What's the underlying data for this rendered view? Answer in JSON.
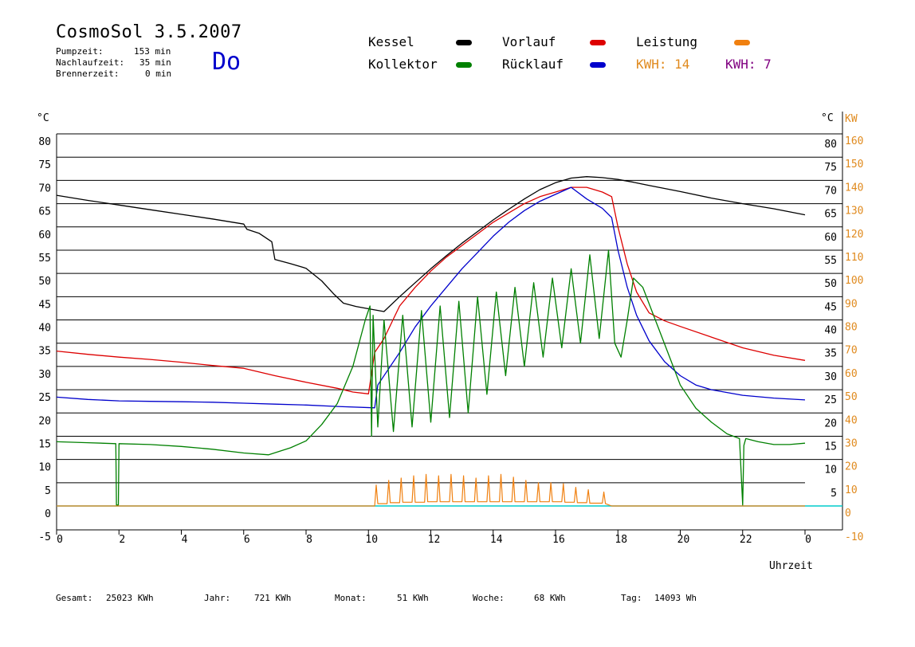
{
  "header": {
    "title": "CosmoSol 3.5.2007",
    "day": "Do",
    "stats": [
      {
        "label": "Pumpzeit:",
        "value": "153 min"
      },
      {
        "label": "Nachlaufzeit:",
        "value": "35 min"
      },
      {
        "label": "Brennerzeit:",
        "value": "0 min"
      }
    ]
  },
  "legend": {
    "kessel": "Kessel",
    "kollektor": "Kollektor",
    "vorlauf": "Vorlauf",
    "ruecklauf": "Rücklauf",
    "leistung": "Leistung",
    "kwh1": "KWH: 14",
    "kwh2": "KWH: 7"
  },
  "colors": {
    "kessel": "#000000",
    "kollektor": "#008000",
    "vorlauf": "#dd0000",
    "ruecklauf": "#0000cc",
    "leistung": "#f08010",
    "kwh2": "#800080",
    "zero": "#00cccc",
    "kw_axis": "#e08a1e"
  },
  "footer": {
    "gesamt_label": "Gesamt:",
    "gesamt_value": "25023 KWh",
    "jahr_label": "Jahr:",
    "jahr_value": "721 KWh",
    "monat_label": "Monat:",
    "monat_value": "51 KWh",
    "woche_label": "Woche:",
    "woche_value": "68 KWh",
    "tag_label": "Tag:",
    "tag_value": "14093 Wh"
  },
  "chart_data": {
    "type": "line",
    "xlabel": "Uhrzeit",
    "ylabel_left": "°C",
    "ylabel_right_temp": "°C",
    "ylabel_right_power": "KW",
    "xlim": [
      0,
      24
    ],
    "ylim": [
      -5,
      80
    ],
    "y2lim": [
      -10,
      160
    ],
    "x_ticks": [
      "0",
      "2",
      "4",
      "6",
      "8",
      "10",
      "12",
      "14",
      "16",
      "18",
      "20",
      "22",
      "0"
    ],
    "y_ticks_left": [
      "80",
      "75",
      "70",
      "65",
      "60",
      "55",
      "50",
      "45",
      "40",
      "35",
      "30",
      "25",
      "20",
      "15",
      "10",
      "5",
      "0",
      "-5"
    ],
    "y_ticks_right_temp": [
      "80",
      "75",
      "70",
      "65",
      "60",
      "55",
      "50",
      "45",
      "40",
      "35",
      "30",
      "25",
      "20",
      "15",
      "10",
      "5"
    ],
    "y_ticks_right_power": [
      "160",
      "150",
      "140",
      "130",
      "120",
      "110",
      "100",
      "90",
      "80",
      "70",
      "60",
      "50",
      "40",
      "30",
      "20",
      "10",
      "0",
      "-10"
    ],
    "grid": true,
    "series": [
      {
        "name": "Kessel",
        "key": "kessel",
        "x": [
          0,
          1,
          2,
          3,
          4,
          5,
          6,
          6.1,
          6.5,
          6.9,
          7.0,
          7.5,
          8.0,
          8.5,
          8.9,
          9.2,
          9.6,
          10.0,
          10.5,
          11.0,
          11.5,
          12.0,
          12.5,
          13.0,
          13.5,
          14.0,
          14.5,
          15.0,
          15.5,
          16.0,
          16.5,
          17.0,
          17.5,
          18.0,
          18.5,
          19.0,
          20.0,
          21.0,
          22.0,
          23.0,
          24.0
        ],
        "y": [
          66.8,
          65.7,
          64.7,
          63.7,
          62.7,
          61.7,
          60.6,
          59.5,
          58.6,
          56.8,
          53.0,
          52.1,
          51.1,
          48.4,
          45.5,
          43.6,
          42.9,
          42.4,
          41.8,
          45.0,
          48.0,
          51.0,
          53.8,
          56.5,
          59.0,
          61.5,
          63.8,
          66.0,
          68.0,
          69.5,
          70.5,
          70.8,
          70.6,
          70.2,
          69.6,
          68.9,
          67.6,
          66.2,
          65.0,
          63.9,
          62.6
        ]
      },
      {
        "name": "Vorlauf",
        "key": "vorlauf",
        "x": [
          0,
          1,
          2,
          3,
          4,
          5,
          6,
          7,
          8,
          9,
          9.5,
          10.0,
          10.2,
          10.5,
          11.0,
          11.5,
          12.0,
          12.5,
          13.0,
          13.5,
          14.0,
          14.5,
          15.0,
          15.5,
          16.0,
          16.5,
          17.0,
          17.5,
          17.8,
          18.0,
          18.3,
          18.6,
          19.0,
          19.5,
          20.0,
          21.0,
          22.0,
          23.0,
          24.0
        ],
        "y": [
          33.3,
          32.6,
          32.0,
          31.5,
          30.9,
          30.2,
          29.6,
          28.0,
          26.6,
          25.3,
          24.5,
          24.1,
          33.0,
          36.0,
          43.0,
          47.0,
          50.5,
          53.5,
          56.0,
          58.5,
          61.0,
          63.0,
          65.0,
          66.5,
          67.5,
          68.5,
          68.5,
          67.5,
          66.5,
          60.0,
          52.0,
          46.0,
          41.5,
          39.8,
          38.6,
          36.3,
          34.0,
          32.4,
          31.3
        ]
      },
      {
        "name": "Rücklauf",
        "key": "ruecklauf",
        "x": [
          0,
          1,
          2,
          3,
          4,
          5,
          6,
          7,
          8,
          9,
          10.2,
          10.3,
          10.6,
          11.0,
          11.5,
          12.0,
          12.5,
          13.0,
          13.5,
          14.0,
          14.5,
          15.0,
          15.5,
          16.0,
          16.5,
          17.0,
          17.5,
          17.8,
          18.0,
          18.3,
          18.6,
          19.0,
          19.5,
          20.0,
          20.5,
          21.0,
          22.0,
          23.0,
          24.0
        ],
        "y": [
          23.4,
          22.9,
          22.6,
          22.5,
          22.4,
          22.3,
          22.1,
          21.9,
          21.7,
          21.4,
          21.1,
          26.0,
          29.0,
          33.0,
          38.5,
          43.0,
          47.0,
          51.0,
          54.5,
          58.0,
          61.0,
          63.5,
          65.5,
          67.0,
          68.5,
          66.0,
          64.0,
          62.0,
          55.0,
          47.0,
          41.0,
          35.5,
          31.0,
          28.0,
          26.0,
          25.0,
          23.8,
          23.2,
          22.8
        ]
      },
      {
        "name": "Kollektor",
        "key": "kollektor",
        "x": [
          0,
          1,
          1.9,
          1.92,
          1.98,
          2.0,
          3,
          4,
          5,
          6,
          6.8,
          7.5,
          8.0,
          8.5,
          9.0,
          9.5,
          9.9,
          10.05,
          10.1,
          10.15,
          10.3,
          10.5,
          10.8,
          11.1,
          11.4,
          11.7,
          12.0,
          12.3,
          12.6,
          12.9,
          13.2,
          13.5,
          13.8,
          14.1,
          14.4,
          14.7,
          15.0,
          15.3,
          15.6,
          15.9,
          16.2,
          16.5,
          16.8,
          17.1,
          17.4,
          17.7,
          17.9,
          18.1,
          18.3,
          18.5,
          18.8,
          19.2,
          19.6,
          20.0,
          20.5,
          21.0,
          21.5,
          21.9,
          22.0,
          22.04,
          22.1,
          22.5,
          23.0,
          23.5,
          24.0
        ],
        "y": [
          13.8,
          13.6,
          13.4,
          0.2,
          0.2,
          13.4,
          13.2,
          12.8,
          12.2,
          11.4,
          11.0,
          12.5,
          14.0,
          17.5,
          22.0,
          30.0,
          40.0,
          43.0,
          15.0,
          41.0,
          17.0,
          40.0,
          16.0,
          41.0,
          17.0,
          42.0,
          18.0,
          43.0,
          19.0,
          44.0,
          20.0,
          45.0,
          24.0,
          46.0,
          28.0,
          47.0,
          30.0,
          48.0,
          32.0,
          49.0,
          34.0,
          51.0,
          35.0,
          54.0,
          36.0,
          55.0,
          35.0,
          32.0,
          40.0,
          49.0,
          47.0,
          40.0,
          33.0,
          26.0,
          21.0,
          18.0,
          15.5,
          14.5,
          0.2,
          13.0,
          14.5,
          13.8,
          13.2,
          13.2,
          13.5
        ]
      },
      {
        "name": "Leistung",
        "key": "leistung",
        "x": [
          0,
          10.2,
          10.25,
          10.3,
          10.6,
          10.65,
          10.7,
          11.0,
          11.05,
          11.1,
          11.4,
          11.45,
          11.5,
          11.8,
          11.85,
          11.9,
          12.2,
          12.25,
          12.3,
          12.6,
          12.65,
          12.7,
          13.0,
          13.05,
          13.1,
          13.4,
          13.45,
          13.5,
          13.8,
          13.85,
          13.9,
          14.2,
          14.25,
          14.3,
          14.6,
          14.65,
          14.7,
          15.0,
          15.05,
          15.1,
          15.4,
          15.45,
          15.5,
          15.8,
          15.85,
          15.9,
          16.2,
          16.25,
          16.3,
          16.6,
          16.65,
          16.7,
          17.0,
          17.05,
          17.1,
          17.5,
          17.55,
          17.6,
          17.8,
          24.0
        ],
        "y": [
          0,
          0,
          4.5,
          0.5,
          0.5,
          5.5,
          0.7,
          0.7,
          6.0,
          0.8,
          0.8,
          6.5,
          0.8,
          0.8,
          6.8,
          0.9,
          0.9,
          6.5,
          0.9,
          0.9,
          6.8,
          0.9,
          0.9,
          6.5,
          0.9,
          0.9,
          6.0,
          0.9,
          0.9,
          6.5,
          0.9,
          0.9,
          6.8,
          0.9,
          0.9,
          6.2,
          0.9,
          0.9,
          5.5,
          0.9,
          0.9,
          5.0,
          0.9,
          0.9,
          5.0,
          0.9,
          0.9,
          4.8,
          0.8,
          0.8,
          4.0,
          0.7,
          0.7,
          3.5,
          0.6,
          0.6,
          3.0,
          0.5,
          0.0,
          0.0
        ]
      }
    ],
    "zero_line": 0
  }
}
